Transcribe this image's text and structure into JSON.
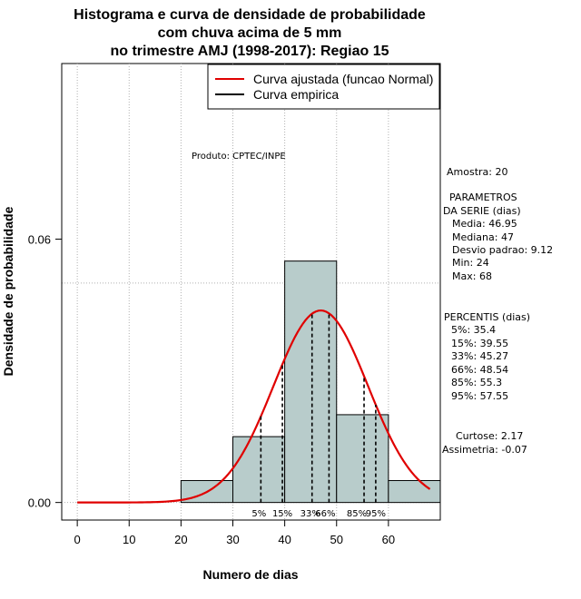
{
  "colors": {
    "bar_fill": "#b8cccb",
    "normal_curve": "#e00000",
    "grid": "#b0b0b0"
  },
  "chart_data": {
    "type": "bar",
    "title_lines": [
      "Histograma e curva de densidade de probabilidade",
      "com chuva acima de 5 mm",
      "no trimestre AMJ (1998-2017): Regiao 15"
    ],
    "xlabel": "Numero de dias",
    "ylabel": "Densidade de probabilidade",
    "xlim": [
      -3,
      70
    ],
    "ylim": [
      -0.004,
      0.1
    ],
    "x_ticks": [
      0,
      10,
      20,
      30,
      40,
      50,
      60
    ],
    "y_ticks": [
      0.0,
      0.06
    ],
    "y_tick_labels": [
      "0.00",
      "0.06"
    ],
    "grid_x": [
      0,
      10,
      20,
      30,
      40,
      50,
      60
    ],
    "grid_y": [
      0.0,
      0.05
    ],
    "bins": [
      {
        "start": 20,
        "end": 30,
        "density": 0.005
      },
      {
        "start": 30,
        "end": 40,
        "density": 0.015
      },
      {
        "start": 40,
        "end": 50,
        "density": 0.055
      },
      {
        "start": 50,
        "end": 60,
        "density": 0.02
      },
      {
        "start": 60,
        "end": 70,
        "density": 0.005
      }
    ],
    "normal_fit": {
      "mean": 46.95,
      "sd": 9.12,
      "x_from": 0,
      "x_to": 68
    },
    "percentiles": [
      {
        "label": "5%",
        "value": 35.4
      },
      {
        "label": "15%",
        "value": 39.55
      },
      {
        "label": "33%",
        "value": 45.27
      },
      {
        "label": "66%",
        "value": 48.54
      },
      {
        "label": "85%",
        "value": 55.3
      },
      {
        "label": "95%",
        "value": 57.55
      }
    ],
    "legend": [
      {
        "label": "Curva ajustada (funcao Normal)",
        "color": "#e00000"
      },
      {
        "label": "Curva empirica",
        "color": "#000000"
      }
    ],
    "product_note": "Produto: CPTEC/INPE",
    "stats": {
      "amostra": "Amostra: 20",
      "parametros_title_1": "PARAMETROS",
      "parametros_title_2": "DA SERIE (dias)",
      "media": "Media: 46.95",
      "mediana": "Mediana: 47",
      "desvio": "Desvio padrao: 9.12",
      "min": "Min: 24",
      "max": "Max: 68",
      "percentis_title": "PERCENTIS (dias)",
      "p5": "5%: 35.4",
      "p15": "15%: 39.55",
      "p33": "33%: 45.27",
      "p66": "66%: 48.54",
      "p85": "85%: 55.3",
      "p95": "95%: 57.55",
      "curtose": "Curtose: 2.17",
      "assimetria": "Assimetria: -0.07"
    }
  }
}
